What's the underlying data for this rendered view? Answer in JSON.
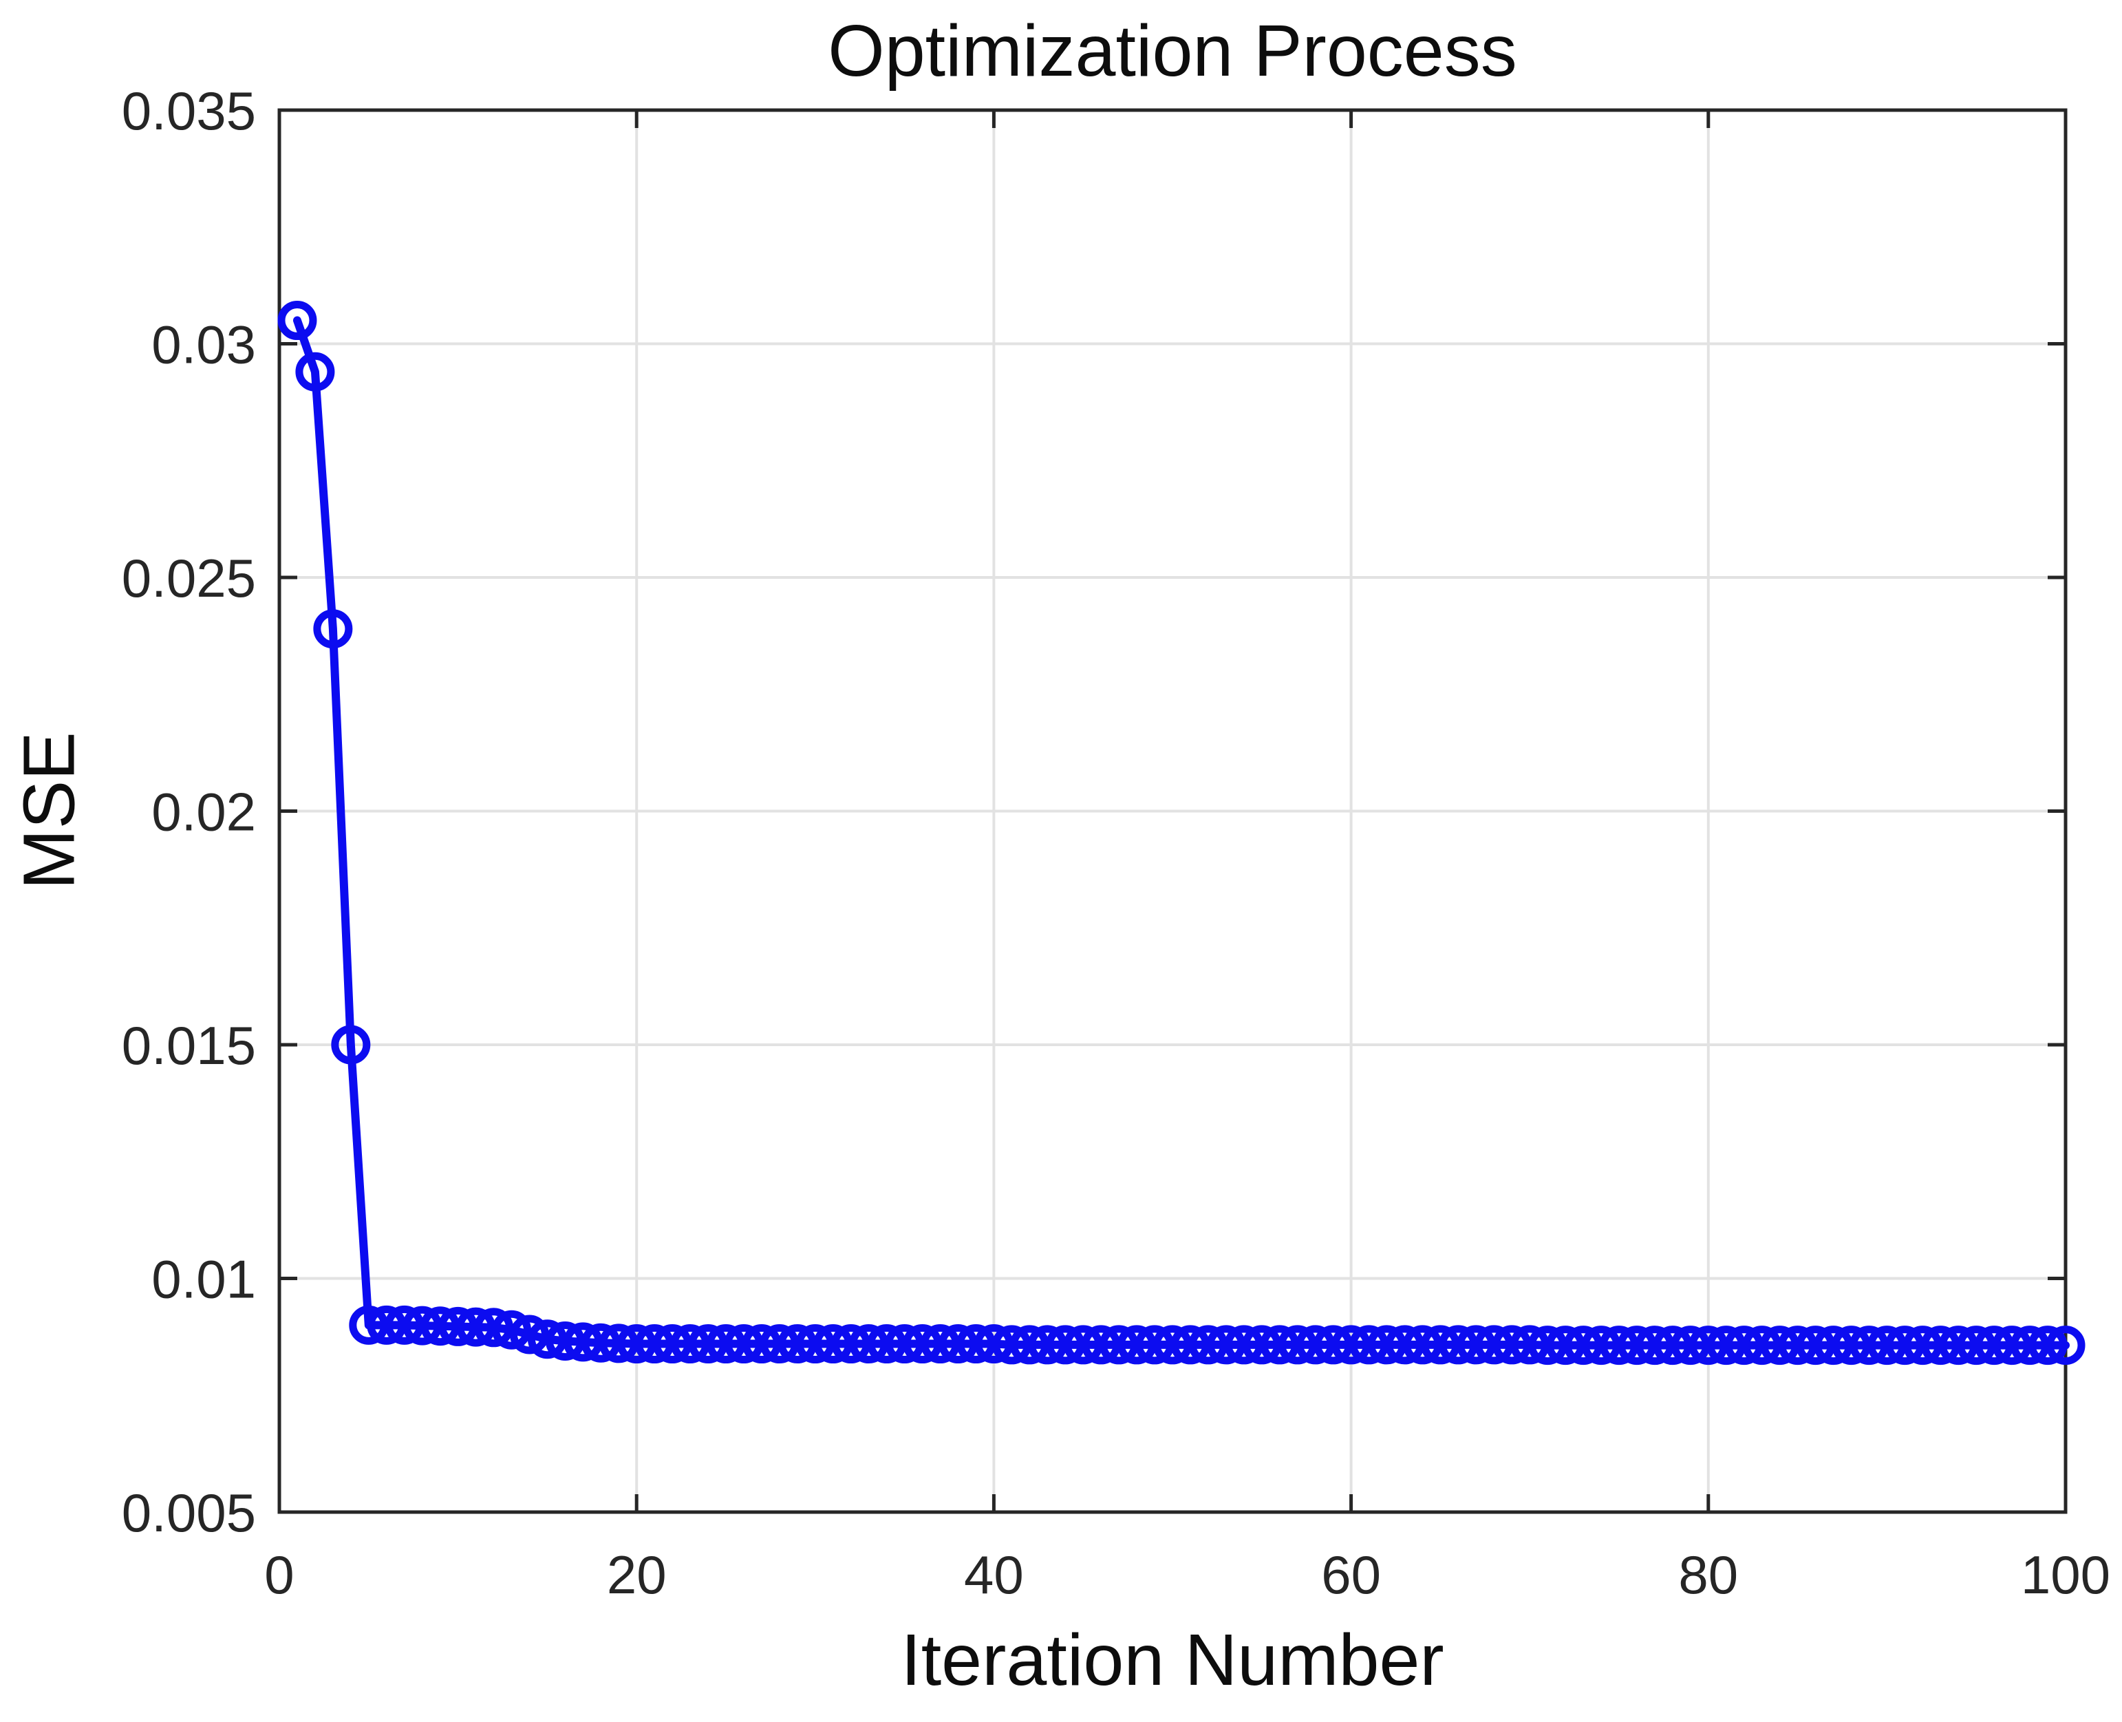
{
  "chart_data": {
    "type": "line",
    "title": "Optimization Process",
    "xlabel": "Iteration Number",
    "ylabel": "MSE",
    "xlim": [
      0,
      100
    ],
    "ylim": [
      0.005,
      0.035
    ],
    "xticks": [
      0,
      20,
      40,
      60,
      80,
      100
    ],
    "xtick_labels": [
      "0",
      "20",
      "40",
      "60",
      "80",
      "100"
    ],
    "yticks": [
      0.005,
      0.01,
      0.015,
      0.02,
      0.025,
      0.03,
      0.035
    ],
    "ytick_labels": [
      "0.005",
      "0.01",
      "0.015",
      "0.02",
      "0.025",
      "0.03",
      "0.035"
    ],
    "grid": true,
    "legend": false,
    "axis_color": "#262626",
    "grid_color": "#e2e2e2",
    "background_color": "#ffffff",
    "series": [
      {
        "name": "MSE",
        "color": "#0c0cf0",
        "marker": "circle",
        "x": [
          1,
          2,
          3,
          4,
          5,
          6,
          7,
          8,
          9,
          10,
          11,
          12,
          13,
          14,
          15,
          16,
          17,
          18,
          19,
          20,
          21,
          22,
          23,
          24,
          25,
          26,
          27,
          28,
          29,
          30,
          31,
          32,
          33,
          34,
          35,
          36,
          37,
          38,
          39,
          40,
          41,
          42,
          43,
          44,
          45,
          46,
          47,
          48,
          49,
          50,
          51,
          52,
          53,
          54,
          55,
          56,
          57,
          58,
          59,
          60,
          61,
          62,
          63,
          64,
          65,
          66,
          67,
          68,
          69,
          70,
          71,
          72,
          73,
          74,
          75,
          76,
          77,
          78,
          79,
          80,
          81,
          82,
          83,
          84,
          85,
          86,
          87,
          88,
          89,
          90,
          91,
          92,
          93,
          94,
          95,
          96,
          97,
          98,
          99,
          100
        ],
        "y": [
          0.0305,
          0.0294,
          0.0239,
          0.015,
          0.009,
          0.009,
          0.009,
          0.00899,
          0.00898,
          0.00897,
          0.00896,
          0.00895,
          0.0089,
          0.0088,
          0.0087,
          0.00866,
          0.00864,
          0.00862,
          0.00861,
          0.0086,
          0.0086,
          0.0086,
          0.0086,
          0.0086,
          0.0086,
          0.0086,
          0.0086,
          0.0086,
          0.0086,
          0.0086,
          0.0086,
          0.0086,
          0.0086,
          0.0086,
          0.0086,
          0.0086,
          0.0086,
          0.0086,
          0.0086,
          0.0086,
          0.00858,
          0.00858,
          0.00858,
          0.00858,
          0.00858,
          0.00858,
          0.00858,
          0.00858,
          0.00858,
          0.00858,
          0.00858,
          0.00858,
          0.00858,
          0.00858,
          0.00858,
          0.00858,
          0.00858,
          0.00858,
          0.00858,
          0.00858,
          0.00858,
          0.00858,
          0.00858,
          0.00858,
          0.00858,
          0.00858,
          0.00858,
          0.00858,
          0.00858,
          0.00858,
          0.00857,
          0.00857,
          0.00857,
          0.00857,
          0.00857,
          0.00857,
          0.00857,
          0.00857,
          0.00857,
          0.00857,
          0.00857,
          0.00857,
          0.00857,
          0.00857,
          0.00857,
          0.00857,
          0.00857,
          0.00857,
          0.00857,
          0.00857,
          0.00857,
          0.00857,
          0.00857,
          0.00857,
          0.00857,
          0.00857,
          0.00857,
          0.00857,
          0.00857,
          0.00857
        ]
      }
    ]
  }
}
